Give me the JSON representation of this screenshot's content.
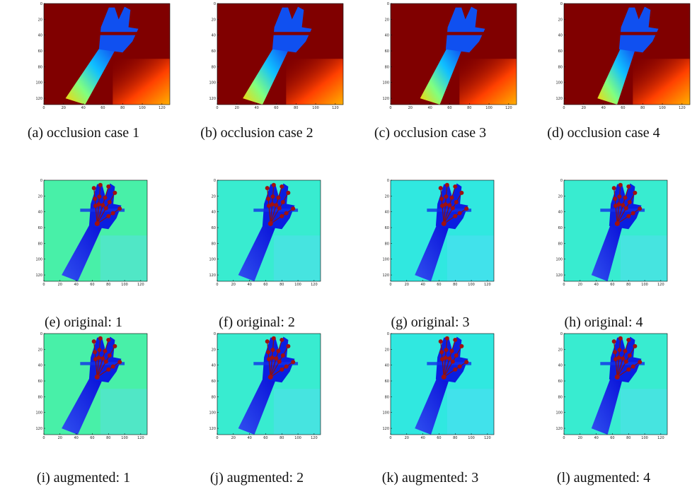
{
  "axis_ticks": [
    0,
    20,
    40,
    60,
    80,
    100,
    120
  ],
  "panels": [
    {
      "caption": "(a) occlusion case 1"
    },
    {
      "caption": "(b) occlusion case 2"
    },
    {
      "caption": "(c) occlusion case 3"
    },
    {
      "caption": "(d) occlusion case 4"
    },
    {
      "caption": "(e) original: 1"
    },
    {
      "caption": "(f) original: 2"
    },
    {
      "caption": "(g) original: 3"
    },
    {
      "caption": "(h) original: 4"
    },
    {
      "caption": "(i) augmented: 1"
    },
    {
      "caption": "(j) augmented: 2"
    },
    {
      "caption": "(k) augmented: 3"
    },
    {
      "caption": "(l) augmented: 4"
    }
  ]
}
